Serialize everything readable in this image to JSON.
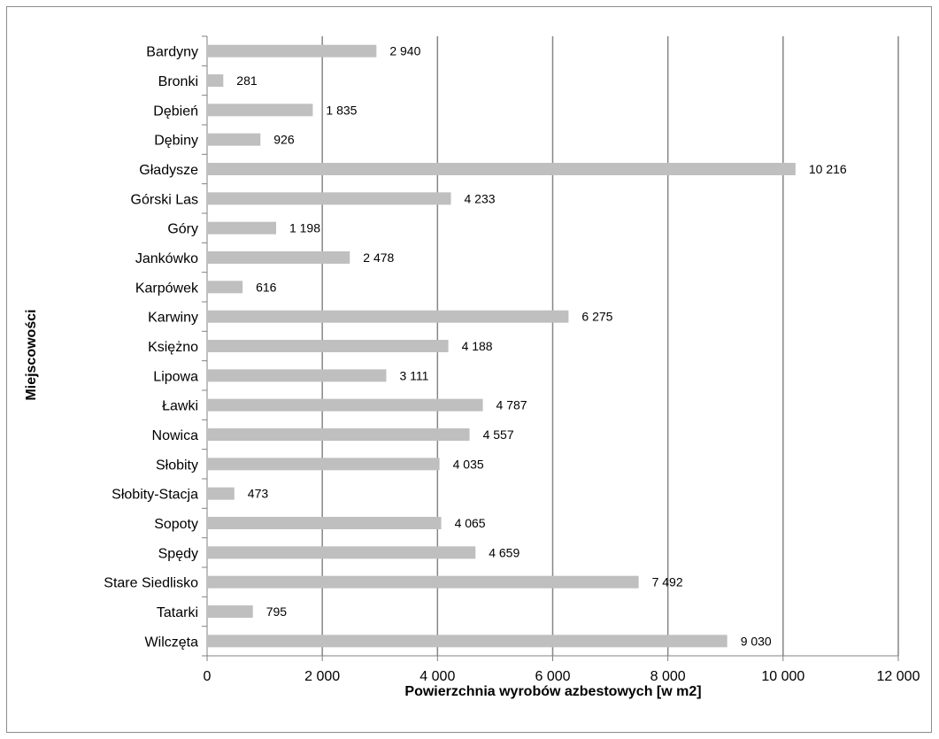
{
  "chart_data": {
    "type": "bar",
    "orientation": "horizontal",
    "xlabel": "Powierzchnia wyrobów azbestowych [w m2]",
    "ylabel": "Miejscowości",
    "xlim": [
      0,
      12000
    ],
    "x_ticks": [
      0,
      2000,
      4000,
      6000,
      8000,
      10000,
      12000
    ],
    "x_tick_labels": [
      "0",
      "2 000",
      "4 000",
      "6 000",
      "8 000",
      "10 000",
      "12 000"
    ],
    "grid": "vertical",
    "legend": "none",
    "bar_color": "#bfbfbf",
    "grid_color": "#868686",
    "categories": [
      "Bardyny",
      "Bronki",
      "Dębień",
      "Dębiny",
      "Gładysze",
      "Górski Las",
      "Góry",
      "Jankówko",
      "Karpówek",
      "Karwiny",
      "Księżno",
      "Lipowa",
      "Ławki",
      "Nowica",
      "Słobity",
      "Słobity-Stacja",
      "Sopoty",
      "Spędy",
      "Stare Siedlisko",
      "Tatarki",
      "Wilczęta"
    ],
    "values": [
      2940,
      281,
      1835,
      926,
      10216,
      4233,
      1198,
      2478,
      616,
      6275,
      4188,
      3111,
      4787,
      4557,
      4035,
      473,
      4065,
      4659,
      7492,
      795,
      9030
    ],
    "value_labels": [
      "2 940",
      "281",
      "1 835",
      "926",
      "10 216",
      "4 233",
      "1 198",
      "2 478",
      "616",
      "6 275",
      "4 188",
      "3 111",
      "4 787",
      "4 557",
      "4 035",
      "473",
      "4 065",
      "4 659",
      "7 492",
      "795",
      "9 030"
    ]
  }
}
